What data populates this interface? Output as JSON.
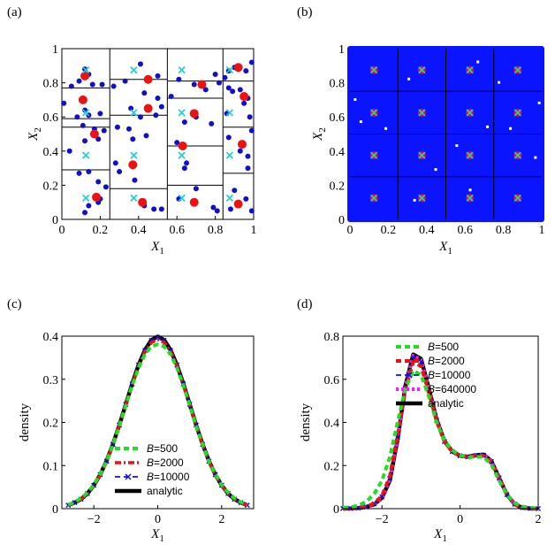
{
  "chart_data": [
    {
      "id": "a",
      "panel_label": "(a)",
      "type": "scatter",
      "xlabel_main": "X",
      "xlabel_sub": "1",
      "ylabel_main": "X",
      "ylabel_sub": "2",
      "xlim": [
        0,
        1
      ],
      "ylim": [
        0,
        1
      ],
      "xticks": [
        "0",
        "0.2",
        "0.4",
        "0.6",
        "0.8",
        "1"
      ],
      "yticks": [
        "0",
        "0.2",
        "0.4",
        "0.6",
        "0.8",
        "1"
      ],
      "grid": false,
      "partition": {
        "columns": [
          [
            0,
            0.25
          ],
          [
            0.25,
            0.55
          ],
          [
            0.55,
            0.84
          ],
          [
            0.84,
            1
          ]
        ],
        "rows": [
          [
            0,
            0.29,
            0.54,
            0.59,
            0.77,
            1
          ],
          [
            0,
            0.18,
            0.61,
            0.82,
            1
          ],
          [
            0,
            0.2,
            0.43,
            0.71,
            0.81,
            1
          ],
          [
            0,
            0.27,
            0.54,
            0.81,
            1
          ]
        ]
      },
      "series": [
        {
          "marker": "small-dot",
          "color": "#1010cc",
          "points": [
            [
              0.01,
              0.68
            ],
            [
              0.05,
              0.78
            ],
            [
              0.09,
              0.81
            ],
            [
              0.12,
              0.88
            ],
            [
              0.14,
              0.85
            ],
            [
              0.16,
              0.79
            ],
            [
              0.21,
              0.79
            ],
            [
              0.08,
              0.6
            ],
            [
              0.12,
              0.64
            ],
            [
              0.14,
              0.61
            ],
            [
              0.2,
              0.62
            ],
            [
              0.11,
              0.55
            ],
            [
              0.17,
              0.53
            ],
            [
              0.22,
              0.52
            ],
            [
              0.12,
              0.46
            ],
            [
              0.19,
              0.47
            ],
            [
              0.04,
              0.4
            ],
            [
              0.09,
              0.27
            ],
            [
              0.14,
              0.28
            ],
            [
              0.19,
              0.22
            ],
            [
              0.23,
              0.19
            ],
            [
              0.12,
              0.04
            ],
            [
              0.14,
              0.08
            ],
            [
              0.19,
              0.1
            ],
            [
              0.2,
              0.12
            ],
            [
              0.27,
              0.78
            ],
            [
              0.33,
              0.81
            ],
            [
              0.41,
              0.91
            ],
            [
              0.5,
              0.84
            ],
            [
              0.43,
              0.74
            ],
            [
              0.5,
              0.71
            ],
            [
              0.52,
              0.66
            ],
            [
              0.36,
              0.65
            ],
            [
              0.41,
              0.6
            ],
            [
              0.49,
              0.61
            ],
            [
              0.29,
              0.54
            ],
            [
              0.35,
              0.53
            ],
            [
              0.44,
              0.49
            ],
            [
              0.37,
              0.47
            ],
            [
              0.28,
              0.33
            ],
            [
              0.3,
              0.28
            ],
            [
              0.38,
              0.23
            ],
            [
              0.43,
              0.08
            ],
            [
              0.48,
              0.06
            ],
            [
              0.52,
              0.06
            ],
            [
              0.61,
              0.82
            ],
            [
              0.69,
              0.79
            ],
            [
              0.75,
              0.76
            ],
            [
              0.8,
              0.85
            ],
            [
              0.82,
              0.8
            ],
            [
              0.57,
              0.72
            ],
            [
              0.64,
              0.57
            ],
            [
              0.7,
              0.6
            ],
            [
              0.78,
              0.56
            ],
            [
              0.6,
              0.45
            ],
            [
              0.65,
              0.33
            ],
            [
              0.64,
              0.3
            ],
            [
              0.61,
              0.12
            ],
            [
              0.7,
              0.18
            ],
            [
              0.79,
              0.07
            ],
            [
              0.81,
              0.05
            ],
            [
              0.85,
              0.83
            ],
            [
              0.87,
              0.87
            ],
            [
              0.9,
              0.89
            ],
            [
              0.96,
              0.87
            ],
            [
              0.99,
              0.92
            ],
            [
              0.87,
              0.77
            ],
            [
              0.89,
              0.75
            ],
            [
              0.93,
              0.76
            ],
            [
              0.97,
              0.71
            ],
            [
              0.95,
              0.68
            ],
            [
              0.86,
              0.62
            ],
            [
              0.98,
              0.6
            ],
            [
              0.87,
              0.48
            ],
            [
              0.99,
              0.52
            ],
            [
              0.93,
              0.4
            ],
            [
              0.97,
              0.37
            ],
            [
              0.97,
              0.3
            ],
            [
              0.9,
              0.17
            ],
            [
              0.88,
              0.06
            ],
            [
              0.96,
              0.12
            ],
            [
              0.99,
              0.05
            ]
          ]
        },
        {
          "marker": "big-dot",
          "color": "#ee1111",
          "points": [
            [
              0.12,
              0.84
            ],
            [
              0.11,
              0.7
            ],
            [
              0.17,
              0.5
            ],
            [
              0.18,
              0.13
            ],
            [
              0.45,
              0.82
            ],
            [
              0.45,
              0.65
            ],
            [
              0.37,
              0.32
            ],
            [
              0.42,
              0.1
            ],
            [
              0.73,
              0.79
            ],
            [
              0.69,
              0.62
            ],
            [
              0.63,
              0.43
            ],
            [
              0.69,
              0.1
            ],
            [
              0.92,
              0.89
            ],
            [
              0.95,
              0.72
            ],
            [
              0.94,
              0.44
            ],
            [
              0.92,
              0.09
            ]
          ]
        },
        {
          "marker": "cross",
          "color": "#22cccc",
          "points": [
            [
              0.125,
              0.875
            ],
            [
              0.125,
              0.625
            ],
            [
              0.125,
              0.375
            ],
            [
              0.125,
              0.125
            ],
            [
              0.375,
              0.875
            ],
            [
              0.375,
              0.625
            ],
            [
              0.375,
              0.375
            ],
            [
              0.375,
              0.125
            ],
            [
              0.625,
              0.875
            ],
            [
              0.625,
              0.625
            ],
            [
              0.625,
              0.375
            ],
            [
              0.625,
              0.125
            ],
            [
              0.875,
              0.875
            ],
            [
              0.875,
              0.625
            ],
            [
              0.875,
              0.375
            ],
            [
              0.875,
              0.125
            ]
          ]
        }
      ]
    },
    {
      "id": "b",
      "panel_label": "(b)",
      "type": "scatter",
      "xlabel_main": "X",
      "xlabel_sub": "1",
      "ylabel_main": "X",
      "ylabel_sub": "2",
      "xlim": [
        0,
        1
      ],
      "ylim": [
        0,
        1
      ],
      "xticks": [
        "0",
        "0.2",
        "0.4",
        "0.6",
        "0.8",
        "1"
      ],
      "yticks": [
        "0",
        "0.2",
        "0.4",
        "0.6",
        "0.8",
        "1"
      ],
      "grid": false,
      "fill_color": "#0a14ff",
      "partition": {
        "columns": [
          0.25,
          0.5,
          0.75
        ],
        "rows": [
          0.25,
          0.5,
          0.75
        ]
      },
      "centers": [
        [
          0.125,
          0.125
        ],
        [
          0.375,
          0.125
        ],
        [
          0.625,
          0.125
        ],
        [
          0.875,
          0.125
        ],
        [
          0.125,
          0.375
        ],
        [
          0.375,
          0.375
        ],
        [
          0.625,
          0.375
        ],
        [
          0.875,
          0.375
        ],
        [
          0.125,
          0.625
        ],
        [
          0.375,
          0.625
        ],
        [
          0.625,
          0.625
        ],
        [
          0.875,
          0.625
        ],
        [
          0.125,
          0.875
        ],
        [
          0.375,
          0.875
        ],
        [
          0.625,
          0.875
        ],
        [
          0.875,
          0.875
        ]
      ],
      "center_colors": {
        "point": "#ee1111",
        "cross": "#22cccc"
      }
    },
    {
      "id": "c",
      "panel_label": "(c)",
      "type": "line",
      "xlabel_main": "X",
      "xlabel_sub": "1",
      "ylabel": "density",
      "xlim": [
        -3,
        3
      ],
      "ylim": [
        0,
        0.4
      ],
      "xticks": [
        -2,
        0,
        2
      ],
      "xtick_labels": [
        "−2",
        "0",
        "2"
      ],
      "yticks": [
        0,
        0.1,
        0.2,
        0.3,
        0.4
      ],
      "ytick_labels": [
        "0",
        "0.1",
        "0.2",
        "0.3",
        "0.4"
      ],
      "grid": false,
      "legend_position": "lower-center",
      "x": [
        -2.8,
        -2.6,
        -2.4,
        -2.2,
        -2.0,
        -1.8,
        -1.6,
        -1.4,
        -1.2,
        -1.0,
        -0.8,
        -0.6,
        -0.4,
        -0.2,
        0.0,
        0.2,
        0.4,
        0.6,
        0.8,
        1.0,
        1.2,
        1.4,
        1.6,
        1.8,
        2.0,
        2.2,
        2.4,
        2.6,
        2.8
      ],
      "series": [
        {
          "name_italic": "B",
          "name_rest": "=500",
          "color": "#22dd22",
          "style": "dashed-thick",
          "values": [
            0.009,
            0.015,
            0.024,
            0.037,
            0.055,
            0.08,
            0.11,
            0.149,
            0.192,
            0.24,
            0.286,
            0.327,
            0.358,
            0.376,
            0.381,
            0.376,
            0.358,
            0.327,
            0.286,
            0.24,
            0.192,
            0.149,
            0.11,
            0.08,
            0.055,
            0.037,
            0.024,
            0.015,
            0.009
          ]
        },
        {
          "name_italic": "B",
          "name_rest": "=2000",
          "color": "#ee1111",
          "style": "dashdot-thick",
          "values": [
            0.008,
            0.014,
            0.022,
            0.035,
            0.053,
            0.078,
            0.109,
            0.148,
            0.193,
            0.241,
            0.288,
            0.331,
            0.365,
            0.385,
            0.392,
            0.385,
            0.365,
            0.331,
            0.288,
            0.241,
            0.193,
            0.148,
            0.109,
            0.078,
            0.053,
            0.035,
            0.022,
            0.014,
            0.008
          ]
        },
        {
          "name_italic": "B",
          "name_rest": "=10000",
          "color": "#1111dd",
          "style": "dashed-marker",
          "values": [
            0.008,
            0.014,
            0.022,
            0.035,
            0.054,
            0.079,
            0.11,
            0.149,
            0.194,
            0.242,
            0.289,
            0.333,
            0.367,
            0.39,
            0.397,
            0.39,
            0.367,
            0.333,
            0.289,
            0.242,
            0.194,
            0.149,
            0.11,
            0.079,
            0.054,
            0.035,
            0.022,
            0.014,
            0.008
          ]
        },
        {
          "name": "analytic",
          "color": "#000000",
          "style": "solid-thick",
          "values": [
            0.008,
            0.014,
            0.022,
            0.035,
            0.054,
            0.079,
            0.111,
            0.15,
            0.194,
            0.242,
            0.29,
            0.333,
            0.368,
            0.391,
            0.399,
            0.391,
            0.368,
            0.333,
            0.29,
            0.242,
            0.194,
            0.15,
            0.111,
            0.079,
            0.054,
            0.035,
            0.022,
            0.014,
            0.008
          ]
        }
      ]
    },
    {
      "id": "d",
      "panel_label": "(d)",
      "type": "line",
      "xlabel_main": "X",
      "xlabel_sub": "1",
      "ylabel": "density",
      "xlim": [
        -3,
        2
      ],
      "ylim": [
        0,
        0.8
      ],
      "xticks": [
        -2,
        0,
        2
      ],
      "xtick_labels": [
        "−2",
        "0",
        "2"
      ],
      "yticks": [
        0,
        0.2,
        0.4,
        0.6,
        0.8
      ],
      "ytick_labels": [
        "0",
        "0.2",
        "0.4",
        "0.6",
        "0.8"
      ],
      "grid": false,
      "legend_position": "upper-right",
      "x": [
        -3.0,
        -2.8,
        -2.6,
        -2.4,
        -2.2,
        -2.0,
        -1.8,
        -1.6,
        -1.4,
        -1.2,
        -1.0,
        -0.8,
        -0.6,
        -0.4,
        -0.2,
        0.0,
        0.2,
        0.4,
        0.6,
        0.8,
        1.0,
        1.2,
        1.4,
        1.6,
        1.8,
        2.0
      ],
      "series": [
        {
          "name_italic": "B",
          "name_rest": "=500",
          "color": "#22dd22",
          "style": "dashed-thick",
          "values": [
            0.004,
            0.007,
            0.015,
            0.033,
            0.068,
            0.13,
            0.238,
            0.4,
            0.557,
            0.64,
            0.62,
            0.52,
            0.4,
            0.315,
            0.27,
            0.248,
            0.238,
            0.24,
            0.24,
            0.205,
            0.13,
            0.065,
            0.025,
            0.01,
            0.004,
            0.002
          ]
        },
        {
          "name_italic": "B",
          "name_rest": "=2000",
          "color": "#ee1111",
          "style": "dashed-thick",
          "values": [
            0.001,
            0.002,
            0.004,
            0.009,
            0.025,
            0.06,
            0.15,
            0.34,
            0.55,
            0.68,
            0.66,
            0.54,
            0.405,
            0.31,
            0.265,
            0.245,
            0.24,
            0.245,
            0.245,
            0.215,
            0.14,
            0.065,
            0.022,
            0.006,
            0.002,
            0.001
          ]
        },
        {
          "name_italic": "B",
          "name_rest": "=10000",
          "color": "#1111dd",
          "style": "dashed-marker",
          "values": [
            0.001,
            0.001,
            0.003,
            0.008,
            0.022,
            0.055,
            0.14,
            0.33,
            0.56,
            0.7,
            0.68,
            0.55,
            0.41,
            0.312,
            0.265,
            0.245,
            0.24,
            0.246,
            0.248,
            0.218,
            0.142,
            0.065,
            0.021,
            0.005,
            0.001,
            0.0
          ]
        },
        {
          "name_italic": "B",
          "name_rest": "=640000",
          "color": "#ee22ee",
          "style": "dotted-thick",
          "values": [
            0.001,
            0.001,
            0.003,
            0.008,
            0.02,
            0.052,
            0.135,
            0.325,
            0.565,
            0.71,
            0.69,
            0.555,
            0.412,
            0.313,
            0.265,
            0.245,
            0.24,
            0.247,
            0.25,
            0.22,
            0.143,
            0.065,
            0.02,
            0.004,
            0.001,
            0.0
          ]
        },
        {
          "name": "analytic",
          "color": "#000000",
          "style": "solid-thick",
          "values": [
            0.001,
            0.001,
            0.003,
            0.008,
            0.02,
            0.05,
            0.13,
            0.32,
            0.57,
            0.715,
            0.695,
            0.558,
            0.413,
            0.314,
            0.265,
            0.245,
            0.241,
            0.248,
            0.251,
            0.221,
            0.143,
            0.065,
            0.02,
            0.004,
            0.001,
            0.0
          ]
        }
      ]
    }
  ]
}
